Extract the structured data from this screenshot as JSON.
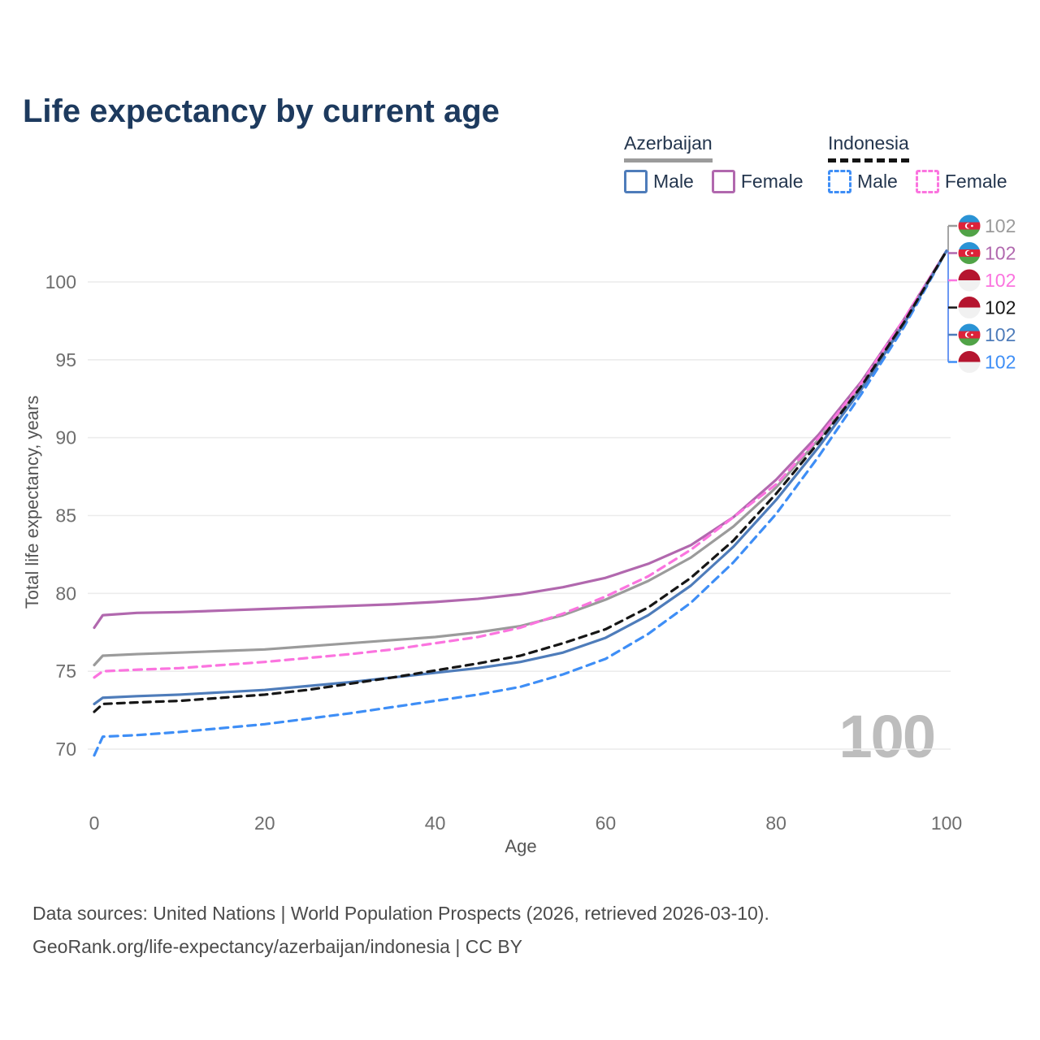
{
  "title": "Life expectancy by current age",
  "watermark": "100",
  "legend": {
    "groups": [
      {
        "country": "Azerbaijan",
        "style": "solid-gray-underline",
        "items": [
          {
            "label": "Male",
            "color": "#4e7cba"
          },
          {
            "label": "Female",
            "color": "#b168ae"
          }
        ]
      },
      {
        "country": "Indonesia",
        "style": "dashed-black-underline",
        "items": [
          {
            "label": "Male",
            "color": "#3e8ef6"
          },
          {
            "label": "Female",
            "color": "#fb74df"
          }
        ]
      }
    ]
  },
  "footer": {
    "line1": "Data sources: United Nations | World Population Prospects (2026, retrieved 2026-03-10).",
    "line2": "GeoRank.org/life-expectancy/azerbaijan/indonesia | CC BY"
  },
  "chart_data": {
    "type": "line",
    "title": "Life expectancy by current age",
    "xlabel": "Age",
    "ylabel": "Total life expectancy, years",
    "xlim": [
      0,
      100
    ],
    "ylim": [
      68,
      103
    ],
    "xticks": [
      0,
      20,
      40,
      60,
      80,
      100
    ],
    "yticks": [
      70,
      75,
      80,
      85,
      90,
      95,
      100
    ],
    "grid": true,
    "legend_position": "top-right",
    "x": [
      0,
      1,
      5,
      10,
      15,
      20,
      25,
      30,
      35,
      40,
      45,
      50,
      55,
      60,
      65,
      70,
      75,
      80,
      85,
      90,
      95,
      100
    ],
    "series": [
      {
        "id": "azerbaijan-total",
        "name": "Azerbaijan (both sexes)",
        "flag": "az",
        "row": 0,
        "color": "#9b9b9b",
        "dash": "solid",
        "end_label": "102",
        "values": [
          75.4,
          76.0,
          76.1,
          76.2,
          76.3,
          76.4,
          76.6,
          76.8,
          77.0,
          77.2,
          77.5,
          77.9,
          78.6,
          79.6,
          80.8,
          82.3,
          84.3,
          86.8,
          89.9,
          93.3,
          97.4,
          102
        ]
      },
      {
        "id": "azerbaijan-female",
        "name": "Azerbaijan Female",
        "flag": "az",
        "row": 1,
        "color": "#b168ae",
        "dash": "solid",
        "end_label": "102",
        "values": [
          77.8,
          78.6,
          78.75,
          78.8,
          78.9,
          79.0,
          79.1,
          79.2,
          79.3,
          79.45,
          79.65,
          79.95,
          80.4,
          81.0,
          81.9,
          83.1,
          84.9,
          87.3,
          90.2,
          93.6,
          97.6,
          102
        ]
      },
      {
        "id": "indonesia-female",
        "name": "Indonesia Female",
        "flag": "id",
        "row": 2,
        "color": "#fb74df",
        "dash": "10 7",
        "end_label": "102",
        "values": [
          74.6,
          75.0,
          75.1,
          75.2,
          75.4,
          75.6,
          75.85,
          76.1,
          76.4,
          76.8,
          77.2,
          77.8,
          78.7,
          79.8,
          81.1,
          82.8,
          84.9,
          87.0,
          90.0,
          93.5,
          97.6,
          102
        ]
      },
      {
        "id": "indonesia-male",
        "name": "Indonesia Male",
        "flag": "id",
        "row": 5,
        "color": "#3e8ef6",
        "dash": "10 7",
        "end_label": "102",
        "values": [
          69.6,
          70.8,
          70.9,
          71.1,
          71.35,
          71.6,
          71.95,
          72.3,
          72.7,
          73.1,
          73.5,
          74.0,
          74.8,
          75.8,
          77.4,
          79.4,
          82.0,
          85.1,
          88.8,
          92.8,
          97.1,
          102
        ]
      },
      {
        "id": "azerbaijan-male",
        "name": "Azerbaijan Male",
        "flag": "az",
        "row": 4,
        "color": "#4e7cba",
        "dash": "solid",
        "end_label": "102",
        "values": [
          72.9,
          73.3,
          73.4,
          73.5,
          73.65,
          73.8,
          74.05,
          74.3,
          74.6,
          74.9,
          75.2,
          75.6,
          76.2,
          77.15,
          78.6,
          80.5,
          83.0,
          86.0,
          89.4,
          93.1,
          97.3,
          102
        ]
      },
      {
        "id": "indonesia-total",
        "name": "Indonesia (both sexes)",
        "flag": "id",
        "row": 3,
        "color": "#161616",
        "dash": "9 7",
        "end_label": "102",
        "values": [
          72.4,
          72.9,
          73.0,
          73.1,
          73.3,
          73.5,
          73.8,
          74.2,
          74.6,
          75.05,
          75.5,
          76.0,
          76.8,
          77.7,
          79.1,
          81.0,
          83.4,
          86.4,
          89.7,
          93.3,
          97.4,
          102
        ]
      }
    ]
  }
}
